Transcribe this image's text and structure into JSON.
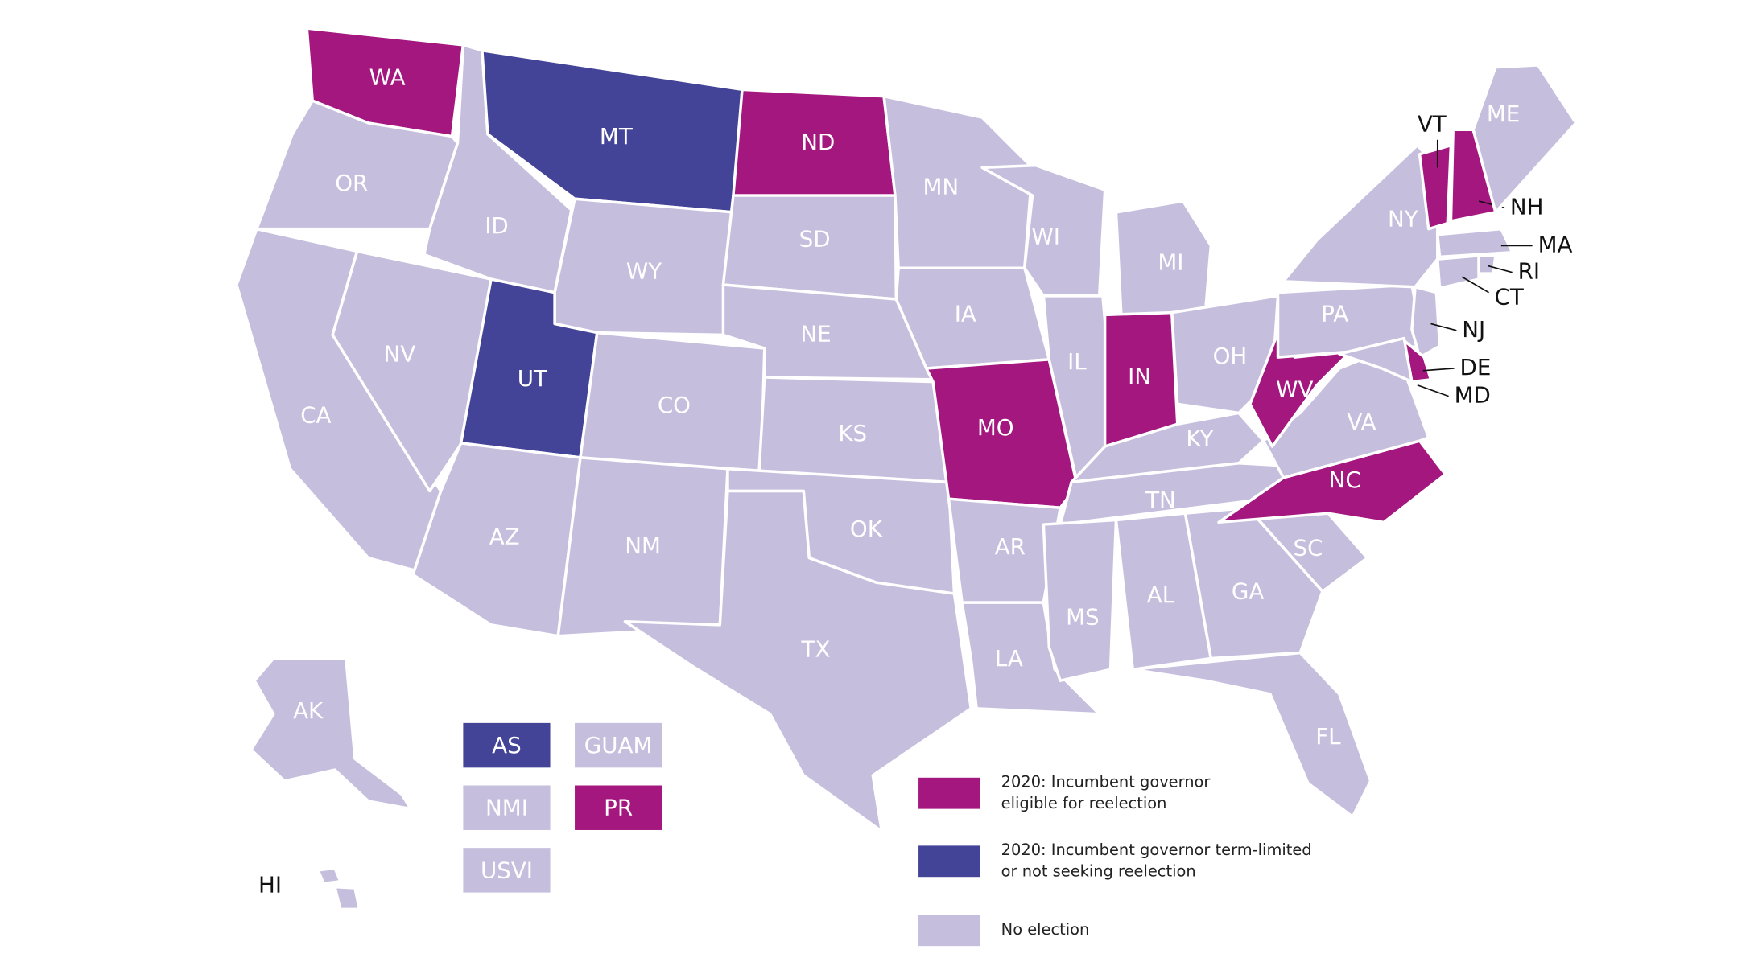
{
  "map": {
    "legend": [
      {
        "color": "#a3177f",
        "lines": [
          "2020: Incumbent governor",
          "eligible for reelection"
        ]
      },
      {
        "color": "#434497",
        "lines": [
          "2020: Incumbent governor term-limited",
          "or not seeking reelection"
        ]
      },
      {
        "color": "#c6bedd",
        "lines": [
          "No election"
        ]
      }
    ],
    "states": [
      {
        "label": "WA",
        "category": 0
      },
      {
        "label": "OR",
        "category": 2
      },
      {
        "label": "CA",
        "category": 2
      },
      {
        "label": "NV",
        "category": 2
      },
      {
        "label": "ID",
        "category": 2
      },
      {
        "label": "MT",
        "category": 1
      },
      {
        "label": "WY",
        "category": 2
      },
      {
        "label": "UT",
        "category": 1
      },
      {
        "label": "CO",
        "category": 2
      },
      {
        "label": "AZ",
        "category": 2
      },
      {
        "label": "NM",
        "category": 2
      },
      {
        "label": "ND",
        "category": 0
      },
      {
        "label": "SD",
        "category": 2
      },
      {
        "label": "NE",
        "category": 2
      },
      {
        "label": "KS",
        "category": 2
      },
      {
        "label": "OK",
        "category": 2
      },
      {
        "label": "TX",
        "category": 2
      },
      {
        "label": "MN",
        "category": 2
      },
      {
        "label": "IA",
        "category": 2
      },
      {
        "label": "MO",
        "category": 0
      },
      {
        "label": "AR",
        "category": 2
      },
      {
        "label": "LA",
        "category": 2
      },
      {
        "label": "WI",
        "category": 2
      },
      {
        "label": "IL",
        "category": 2
      },
      {
        "label": "MI",
        "category": 2
      },
      {
        "label": "IN",
        "category": 0
      },
      {
        "label": "OH",
        "category": 2
      },
      {
        "label": "KY",
        "category": 2
      },
      {
        "label": "TN",
        "category": 2
      },
      {
        "label": "MS",
        "category": 2
      },
      {
        "label": "AL",
        "category": 2
      },
      {
        "label": "GA",
        "category": 2
      },
      {
        "label": "FL",
        "category": 2
      },
      {
        "label": "SC",
        "category": 2
      },
      {
        "label": "NC",
        "category": 0
      },
      {
        "label": "VA",
        "category": 2
      },
      {
        "label": "WV",
        "category": 0
      },
      {
        "label": "PA",
        "category": 2
      },
      {
        "label": "NY",
        "category": 2
      },
      {
        "label": "VT",
        "category": 0
      },
      {
        "label": "NH",
        "category": 0
      },
      {
        "label": "ME",
        "category": 2
      },
      {
        "label": "MA",
        "category": 2
      },
      {
        "label": "CT",
        "category": 2
      },
      {
        "label": "RI",
        "category": 2
      },
      {
        "label": "NJ",
        "category": 2
      },
      {
        "label": "DE",
        "category": 0
      },
      {
        "label": "MD",
        "category": 2
      },
      {
        "label": "AK",
        "category": 2
      },
      {
        "label": "HI",
        "category": 2
      }
    ],
    "territories": [
      {
        "label": "AS",
        "category": 1
      },
      {
        "label": "GUAM",
        "category": 2
      },
      {
        "label": "NMI",
        "category": 2
      },
      {
        "label": "PR",
        "category": 0
      },
      {
        "label": "USVI",
        "category": 2
      }
    ]
  }
}
